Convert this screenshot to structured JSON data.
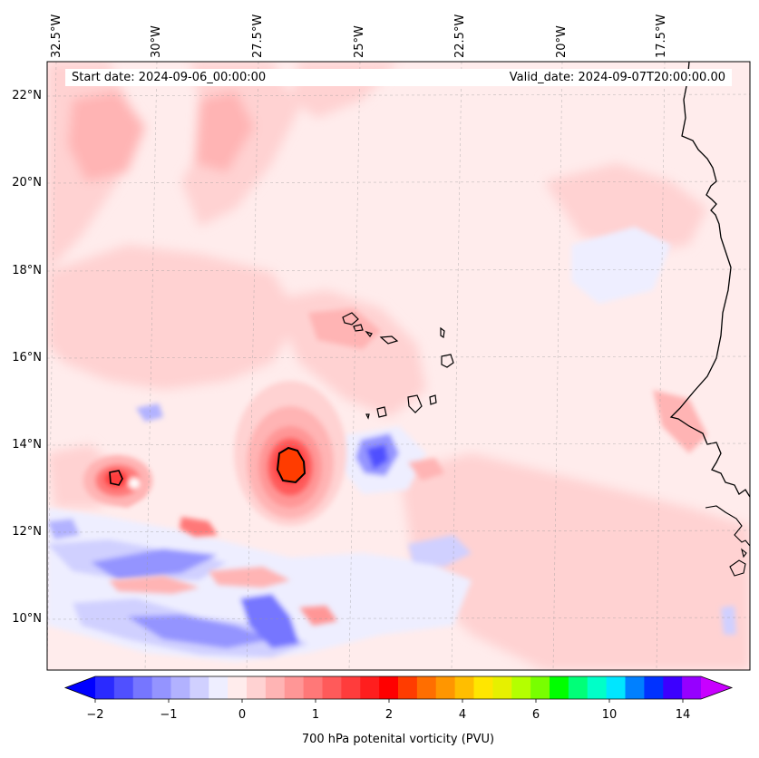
{
  "header": {
    "start_date": "Start date: 2024-09-06_00:00:00",
    "valid_date": "Valid_date: 2024-09-07T20:00:00.00"
  },
  "lon_labels": [
    "32.5°W",
    "30°W",
    "27.5°W",
    "25°W",
    "22.5°W",
    "20°W",
    "17.5°W"
  ],
  "lat_labels": [
    "22°N",
    "20°N",
    "18°N",
    "16°N",
    "14°N",
    "12°N",
    "10°N"
  ],
  "colorbar": {
    "label": "700 hPa potenital vorticity (PVU)",
    "ticks": [
      "−2",
      "−1",
      "0",
      "1",
      "2",
      "4",
      "6",
      "10",
      "14"
    ],
    "colors": [
      "#0000ff",
      "#2a2aff",
      "#5050ff",
      "#7676ff",
      "#9494ff",
      "#b2b2ff",
      "#d0d0ff",
      "#eeeeff",
      "#ffecec",
      "#ffd2d2",
      "#ffb4b4",
      "#ff9696",
      "#ff7878",
      "#ff5a5a",
      "#ff3c3c",
      "#ff1e1e",
      "#ff0000",
      "#ff3c00",
      "#ff6e00",
      "#ff9600",
      "#ffbe00",
      "#ffe600",
      "#e6f000",
      "#b4ff00",
      "#78ff00",
      "#00ff00",
      "#00ff78",
      "#00ffc8",
      "#00e6ff",
      "#0080ff",
      "#0032ff",
      "#3c00ff",
      "#9600ff",
      "#c800ff"
    ]
  }
}
